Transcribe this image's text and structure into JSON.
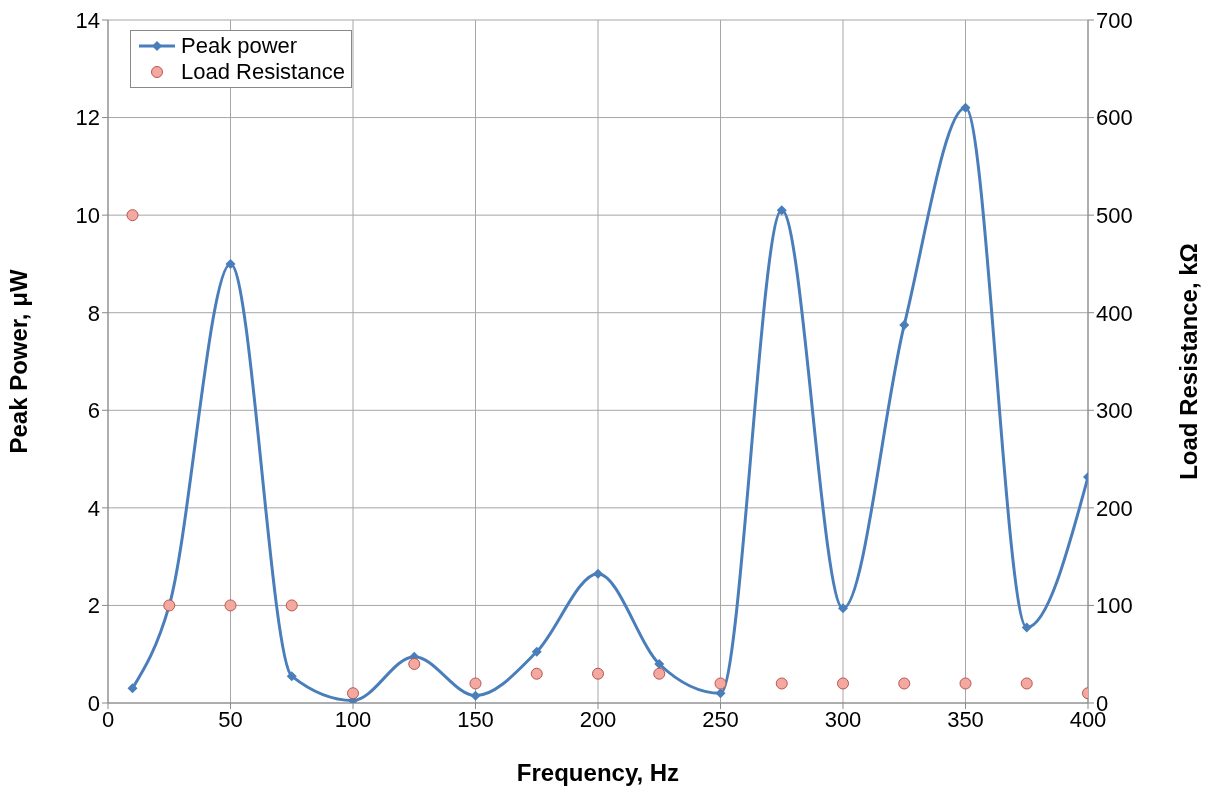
{
  "chart_data": {
    "type": "line",
    "xlabel": "Frequency, Hz",
    "ylabel": "Peak Power, μW",
    "y2label": "Load Resistance, kΩ",
    "x": [
      10,
      25,
      50,
      75,
      100,
      125,
      150,
      175,
      200,
      225,
      250,
      275,
      300,
      325,
      350,
      375,
      400
    ],
    "series": [
      {
        "name": "Peak power",
        "color": "#4a7ebb",
        "marker": "diamond",
        "values": [
          0.3,
          2.0,
          9.0,
          0.55,
          0.05,
          0.95,
          0.15,
          1.05,
          2.65,
          0.8,
          0.2,
          10.1,
          1.94,
          7.75,
          12.2,
          1.55,
          4.63
        ]
      },
      {
        "name": "Load Resistance",
        "type": "scatter",
        "axis": "y2",
        "color": "#f4a9a0",
        "marker": "circle",
        "values": [
          500,
          100,
          100,
          100,
          10,
          40,
          20,
          30,
          30,
          30,
          20,
          20,
          20,
          20,
          20,
          20,
          10
        ]
      }
    ],
    "xlim": [
      0,
      400
    ],
    "xticks": [
      0,
      50,
      100,
      150,
      200,
      250,
      300,
      350,
      400
    ],
    "ylim": [
      0,
      14
    ],
    "yticks": [
      0,
      2,
      4,
      6,
      8,
      10,
      12,
      14
    ],
    "y2lim": [
      0,
      700
    ],
    "y2ticks": [
      0,
      100,
      200,
      300,
      400,
      500,
      600,
      700
    ],
    "grid": true,
    "legend": "top left"
  }
}
